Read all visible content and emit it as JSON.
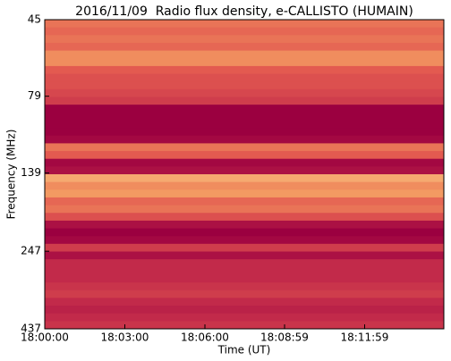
{
  "chart_data": {
    "type": "spectrogram",
    "title": "2016/11/09  Radio flux density, e-CALLISTO (HUMAIN)",
    "x_label": "Time (UT)",
    "y_label": "Frequency (MHz)",
    "xlim": [
      0,
      897
    ],
    "xticks": [
      {
        "value": 0,
        "label": "18:00:00"
      },
      {
        "value": 180,
        "label": "18:03:00"
      },
      {
        "value": 360,
        "label": "18:06:00"
      },
      {
        "value": 539,
        "label": "18:08:59"
      },
      {
        "value": 719,
        "label": "18:11:59"
      }
    ],
    "ylim": [
      45,
      437
    ],
    "yticks": [
      45,
      79,
      139,
      247,
      437
    ],
    "y_log": true,
    "y_inverted": true,
    "zlim": [
      0,
      1
    ],
    "colormap": [
      "#9b0040",
      "#c22a4a",
      "#e35a50",
      "#f39a62",
      "#fbe6a6"
    ],
    "z": [
      0.6,
      0.55,
      0.6,
      0.55,
      0.7,
      0.7,
      0.5,
      0.45,
      0.45,
      0.4,
      0.35,
      0,
      0,
      0,
      0,
      0.05,
      0.6,
      0.5,
      0.05,
      0.1,
      0.8,
      0.7,
      0.75,
      0.55,
      0.6,
      0.45,
      0.1,
      0,
      0.05,
      0.35,
      0.1,
      0.25,
      0.25,
      0.25,
      0.3,
      0.35,
      0.25,
      0.2,
      0.25,
      0.3
    ]
  }
}
